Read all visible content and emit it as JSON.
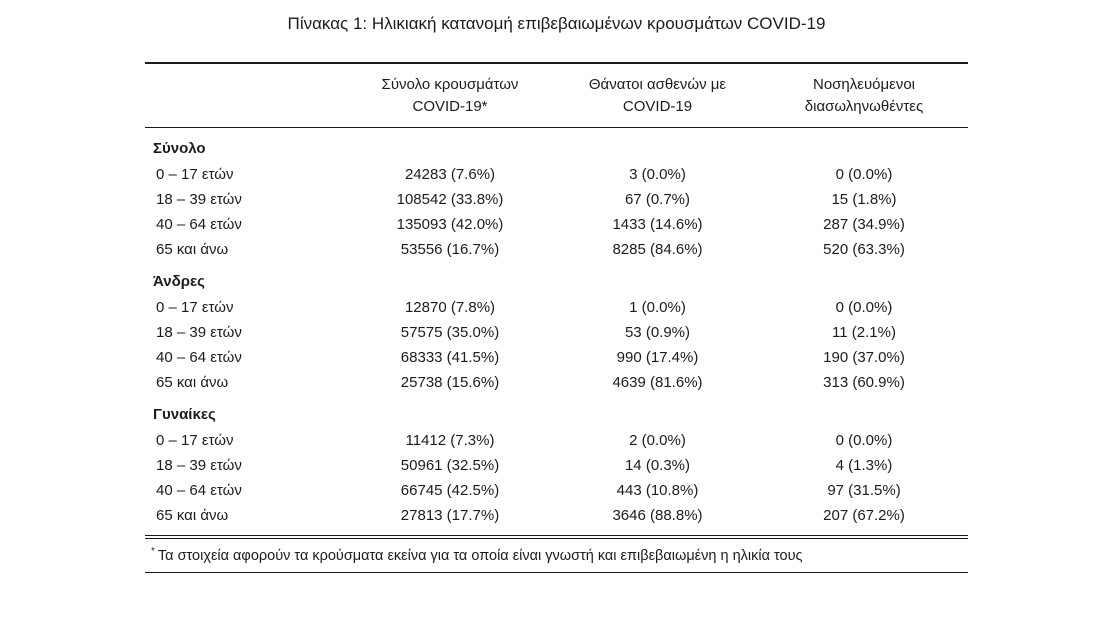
{
  "page": {
    "title": "Πίνακας 1: Ηλικιακή κατανομή επιβεβαιωμένων κρουσμάτων COVID-19",
    "footnote_marker": "*",
    "footnote": "Τα στοιχεία αφορούν τα κρούσματα εκείνα για τα οποία είναι γνωστή και επιβεβαιωμένη η ηλικία τους"
  },
  "table": {
    "columns": [
      {
        "label_line1": "Σύνολο κρουσμάτων",
        "label_line2": "COVID-19*"
      },
      {
        "label_line1": "Θάνατοι ασθενών με",
        "label_line2": "COVID-19"
      },
      {
        "label_line1": "Νοσηλευόμενοι",
        "label_line2": "διασωληνωθέντες"
      }
    ],
    "groups": [
      {
        "label": "Σύνολο",
        "rows": [
          {
            "label": "0 – 17 ετών",
            "cells": [
              "24283 (7.6%)",
              "3 (0.0%)",
              "0 (0.0%)"
            ]
          },
          {
            "label": "18 – 39 ετών",
            "cells": [
              "108542 (33.8%)",
              "67 (0.7%)",
              "15 (1.8%)"
            ]
          },
          {
            "label": "40 – 64 ετών",
            "cells": [
              "135093 (42.0%)",
              "1433 (14.6%)",
              "287 (34.9%)"
            ]
          },
          {
            "label": "65 και άνω",
            "cells": [
              "53556 (16.7%)",
              "8285 (84.6%)",
              "520 (63.3%)"
            ]
          }
        ]
      },
      {
        "label": "Άνδρες",
        "rows": [
          {
            "label": "0 – 17 ετών",
            "cells": [
              "12870 (7.8%)",
              "1 (0.0%)",
              "0 (0.0%)"
            ]
          },
          {
            "label": "18 – 39 ετών",
            "cells": [
              "57575 (35.0%)",
              "53 (0.9%)",
              "11 (2.1%)"
            ]
          },
          {
            "label": "40 – 64 ετών",
            "cells": [
              "68333 (41.5%)",
              "990 (17.4%)",
              "190 (37.0%)"
            ]
          },
          {
            "label": "65 και άνω",
            "cells": [
              "25738 (15.6%)",
              "4639 (81.6%)",
              "313 (60.9%)"
            ]
          }
        ]
      },
      {
        "label": "Γυναίκες",
        "rows": [
          {
            "label": "0 – 17 ετών",
            "cells": [
              "11412 (7.3%)",
              "2 (0.0%)",
              "0 (0.0%)"
            ]
          },
          {
            "label": "18 – 39 ετών",
            "cells": [
              "50961 (32.5%)",
              "14 (0.3%)",
              "4 (1.3%)"
            ]
          },
          {
            "label": "40 – 64 ετών",
            "cells": [
              "66745 (42.5%)",
              "443 (10.8%)",
              "97 (31.5%)"
            ]
          },
          {
            "label": "65 και άνω",
            "cells": [
              "27813 (17.7%)",
              "3646 (88.8%)",
              "207 (67.2%)"
            ]
          }
        ]
      }
    ]
  }
}
